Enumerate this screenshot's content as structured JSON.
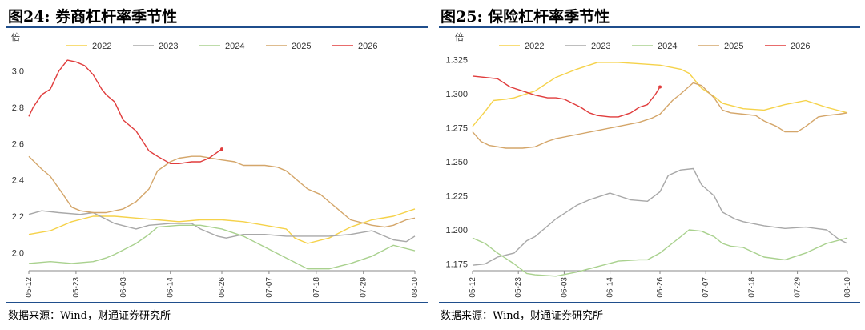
{
  "chart_data": [
    {
      "type": "line",
      "title": "图24: 券商杠杆率季节性",
      "ylabel": "倍",
      "source": "数据来源：Wind，财通证券研究所",
      "ylim": [
        1.9,
        3.1
      ],
      "yticks": [
        2.0,
        2.2,
        2.4,
        2.6,
        2.8,
        3.0
      ],
      "ytick_labels": [
        "2.0",
        "2.2",
        "2.4",
        "2.6",
        "2.8",
        "3.0"
      ],
      "categories": [
        "05-12",
        "05-23",
        "06-03",
        "06-14",
        "06-26",
        "07-07",
        "07-18",
        "07-29",
        "08-10"
      ],
      "tick_positions": [
        0,
        11,
        22,
        33,
        45,
        56,
        67,
        78,
        90
      ],
      "x_span": [
        0,
        90
      ],
      "legend_position": "top",
      "series": [
        {
          "name": "2022",
          "color": "#f5d24a",
          "x": [
            0,
            5,
            10,
            15,
            20,
            25,
            30,
            35,
            40,
            45,
            50,
            55,
            60,
            62,
            65,
            70,
            75,
            80,
            85,
            90
          ],
          "y": [
            2.1,
            2.12,
            2.17,
            2.2,
            2.2,
            2.19,
            2.18,
            2.17,
            2.18,
            2.18,
            2.17,
            2.15,
            2.13,
            2.08,
            2.05,
            2.08,
            2.14,
            2.18,
            2.2,
            2.24
          ]
        },
        {
          "name": "2023",
          "color": "#a8a8a8",
          "x": [
            0,
            3,
            7,
            12,
            15,
            20,
            25,
            28,
            33,
            38,
            40,
            44,
            46,
            50,
            55,
            60,
            65,
            70,
            75,
            80,
            85,
            88,
            90
          ],
          "y": [
            2.21,
            2.23,
            2.22,
            2.21,
            2.22,
            2.16,
            2.13,
            2.15,
            2.16,
            2.16,
            2.13,
            2.09,
            2.08,
            2.1,
            2.1,
            2.09,
            2.09,
            2.09,
            2.1,
            2.12,
            2.07,
            2.06,
            2.09
          ]
        },
        {
          "name": "2024",
          "color": "#a9d18e",
          "x": [
            0,
            5,
            10,
            15,
            18,
            20,
            25,
            28,
            30,
            35,
            40,
            45,
            50,
            55,
            60,
            65,
            70,
            75,
            80,
            85,
            90
          ],
          "y": [
            1.94,
            1.95,
            1.94,
            1.95,
            1.97,
            1.99,
            2.05,
            2.1,
            2.14,
            2.15,
            2.15,
            2.13,
            2.09,
            2.03,
            1.97,
            1.91,
            1.91,
            1.94,
            1.98,
            2.04,
            2.01
          ]
        },
        {
          "name": "2025",
          "color": "#d4a66a",
          "x": [
            0,
            3,
            5,
            8,
            10,
            12,
            15,
            18,
            20,
            22,
            25,
            28,
            30,
            33,
            35,
            38,
            40,
            45,
            48,
            50,
            55,
            58,
            60,
            63,
            65,
            68,
            70,
            75,
            80,
            83,
            85,
            88,
            90
          ],
          "y": [
            2.53,
            2.46,
            2.42,
            2.32,
            2.25,
            2.23,
            2.22,
            2.22,
            2.23,
            2.24,
            2.28,
            2.35,
            2.45,
            2.5,
            2.52,
            2.53,
            2.53,
            2.51,
            2.5,
            2.48,
            2.48,
            2.47,
            2.45,
            2.39,
            2.35,
            2.32,
            2.28,
            2.18,
            2.15,
            2.14,
            2.15,
            2.18,
            2.19
          ]
        },
        {
          "name": "2026",
          "color": "#e03c3c",
          "x": [
            0,
            1,
            3,
            5,
            7,
            9,
            11,
            13,
            15,
            17,
            18,
            20,
            22,
            25,
            28,
            30,
            33,
            35,
            38,
            40,
            42,
            45
          ],
          "y": [
            2.75,
            2.8,
            2.87,
            2.9,
            3.0,
            3.06,
            3.05,
            3.03,
            2.98,
            2.9,
            2.87,
            2.83,
            2.73,
            2.67,
            2.56,
            2.53,
            2.49,
            2.49,
            2.5,
            2.5,
            2.52,
            2.57
          ]
        }
      ]
    },
    {
      "type": "line",
      "title": "图25: 保险杠杆率季节性",
      "ylabel": "倍",
      "source": "数据来源：Wind，财通证券研究所",
      "ylim": [
        1.17,
        1.33
      ],
      "yticks": [
        1.175,
        1.2,
        1.225,
        1.25,
        1.275,
        1.3,
        1.325
      ],
      "ytick_labels": [
        "1.175",
        "1.200",
        "1.225",
        "1.250",
        "1.275",
        "1.300",
        "1.325"
      ],
      "categories": [
        "05-12",
        "05-23",
        "06-03",
        "06-14",
        "06-26",
        "07-07",
        "07-18",
        "07-29",
        "08-10"
      ],
      "tick_positions": [
        0,
        11,
        22,
        33,
        45,
        56,
        67,
        78,
        90
      ],
      "x_span": [
        0,
        90
      ],
      "legend_position": "top",
      "series": [
        {
          "name": "2022",
          "color": "#f5d24a",
          "x": [
            0,
            3,
            5,
            8,
            10,
            15,
            20,
            25,
            30,
            35,
            40,
            45,
            50,
            52,
            55,
            58,
            60,
            65,
            70,
            75,
            80,
            85,
            90
          ],
          "y": [
            1.276,
            1.287,
            1.295,
            1.296,
            1.297,
            1.302,
            1.312,
            1.318,
            1.323,
            1.323,
            1.322,
            1.321,
            1.318,
            1.315,
            1.304,
            1.298,
            1.293,
            1.289,
            1.288,
            1.292,
            1.295,
            1.29,
            1.286
          ]
        },
        {
          "name": "2023",
          "color": "#a8a8a8",
          "x": [
            0,
            3,
            6,
            10,
            13,
            15,
            20,
            25,
            28,
            33,
            35,
            38,
            42,
            45,
            47,
            50,
            53,
            55,
            58,
            60,
            63,
            65,
            70,
            75,
            80,
            85,
            88,
            90
          ],
          "y": [
            1.174,
            1.175,
            1.18,
            1.183,
            1.192,
            1.195,
            1.208,
            1.218,
            1.222,
            1.227,
            1.225,
            1.222,
            1.221,
            1.228,
            1.24,
            1.244,
            1.245,
            1.233,
            1.225,
            1.213,
            1.208,
            1.206,
            1.203,
            1.201,
            1.202,
            1.2,
            1.193,
            1.19
          ]
        },
        {
          "name": "2024",
          "color": "#a9d18e",
          "x": [
            0,
            3,
            6,
            10,
            13,
            15,
            20,
            25,
            30,
            35,
            40,
            42,
            45,
            50,
            52,
            55,
            58,
            60,
            62,
            65,
            70,
            75,
            80,
            85,
            90
          ],
          "y": [
            1.194,
            1.19,
            1.183,
            1.175,
            1.168,
            1.167,
            1.166,
            1.169,
            1.173,
            1.177,
            1.178,
            1.178,
            1.183,
            1.195,
            1.2,
            1.199,
            1.195,
            1.19,
            1.188,
            1.187,
            1.18,
            1.178,
            1.183,
            1.19,
            1.194
          ]
        },
        {
          "name": "2025",
          "color": "#d4a66a",
          "x": [
            0,
            2,
            4,
            8,
            12,
            15,
            18,
            20,
            25,
            30,
            35,
            40,
            43,
            45,
            48,
            50,
            53,
            55,
            58,
            60,
            62,
            65,
            68,
            70,
            73,
            75,
            78,
            80,
            83,
            85,
            88,
            90
          ],
          "y": [
            1.272,
            1.265,
            1.262,
            1.26,
            1.26,
            1.261,
            1.265,
            1.267,
            1.27,
            1.273,
            1.276,
            1.279,
            1.282,
            1.285,
            1.295,
            1.3,
            1.308,
            1.306,
            1.297,
            1.288,
            1.286,
            1.285,
            1.284,
            1.28,
            1.276,
            1.272,
            1.272,
            1.276,
            1.283,
            1.284,
            1.285,
            1.286
          ]
        },
        {
          "name": "2026",
          "color": "#e03c3c",
          "x": [
            0,
            3,
            6,
            9,
            12,
            15,
            18,
            20,
            22,
            24,
            26,
            28,
            30,
            33,
            35,
            38,
            40,
            42,
            44,
            45
          ],
          "y": [
            1.313,
            1.312,
            1.311,
            1.305,
            1.302,
            1.299,
            1.297,
            1.297,
            1.296,
            1.293,
            1.29,
            1.286,
            1.284,
            1.283,
            1.283,
            1.286,
            1.29,
            1.292,
            1.3,
            1.305
          ]
        }
      ]
    }
  ]
}
